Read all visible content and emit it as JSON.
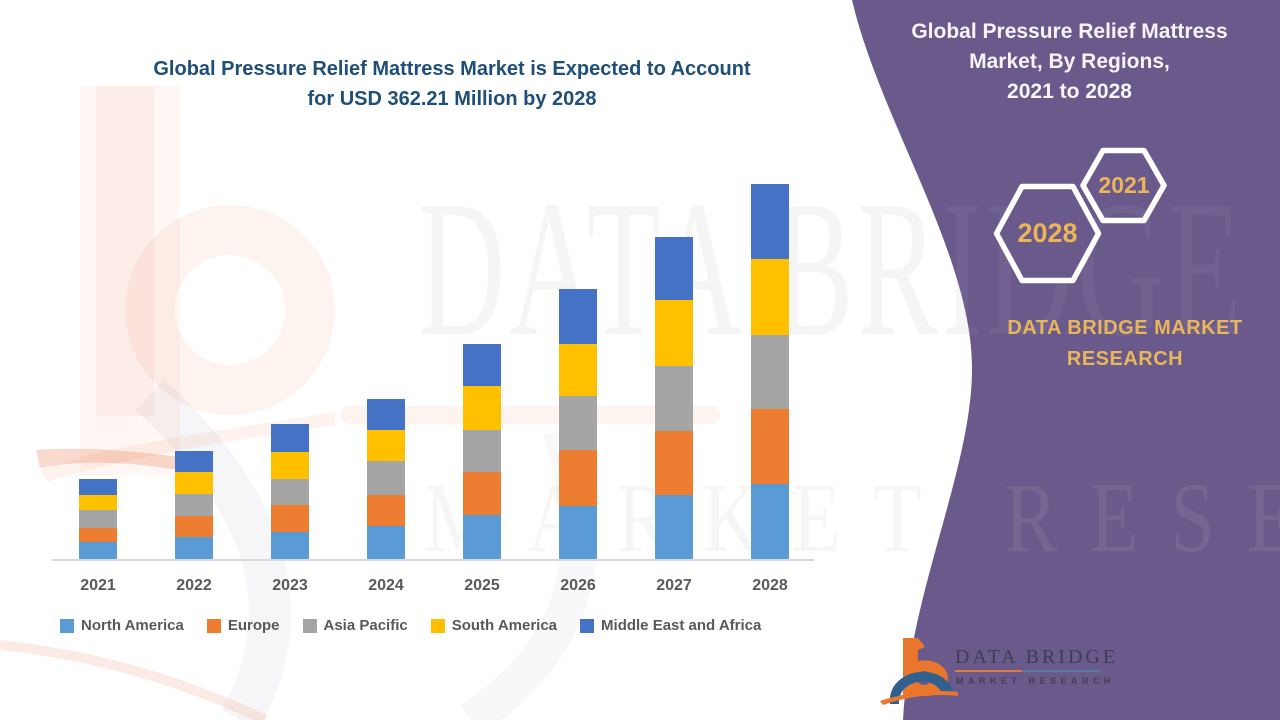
{
  "main_title": {
    "line1": "Global Pressure Relief Mattress Market is Expected to Account",
    "line2": "for USD 362.21 Million by 2028"
  },
  "side_panel": {
    "title_line1": "Global Pressure Relief Mattress",
    "title_line2": "Market, By Regions,",
    "title_line3": "2021 to 2028",
    "hexagon_back_label": "2021",
    "hexagon_front_label": "2028",
    "brand_line1": "DATA BRIDGE MARKET",
    "brand_line2": "RESEARCH",
    "panel_color": "#6a598b",
    "accent_gold": "#ecb658"
  },
  "footer_logo": {
    "brand": "DATA BRIDGE",
    "tagline": "MARKET RESEARCH"
  },
  "watermarks": {
    "row1": "DATA BRIDGE",
    "row2": "MARKET RESEARCH"
  },
  "chart_data": {
    "type": "bar",
    "stacked": true,
    "title": "Global Pressure Relief Mattress Market is Expected to Account for USD 362.21 Million by 2028",
    "value_unit": "USD Million",
    "categories": [
      "2021",
      "2022",
      "2023",
      "2024",
      "2025",
      "2026",
      "2027",
      "2028"
    ],
    "series": [
      {
        "name": "North America",
        "color": "#5B9BD5",
        "values": [
          16.5,
          21.3,
          25.9,
          32.0,
          42.9,
          51.7,
          61.4,
          72.4
        ]
      },
      {
        "name": "Europe",
        "color": "#ED7D31",
        "values": [
          13.9,
          20.7,
          26.2,
          30.3,
          41.0,
          53.3,
          62.3,
          72.7
        ]
      },
      {
        "name": "Asia Pacific",
        "color": "#A5A5A5",
        "values": [
          17.4,
          20.4,
          24.9,
          32.0,
          40.7,
          52.6,
          63.0,
          71.7
        ]
      },
      {
        "name": "South America",
        "color": "#FFC000",
        "values": [
          14.5,
          21.6,
          26.9,
          30.3,
          42.4,
          49.7,
          63.3,
          72.7
        ]
      },
      {
        "name": "Middle East and Africa",
        "color": "#4472C4",
        "values": [
          15.2,
          20.1,
          26.9,
          30.4,
          41.0,
          53.0,
          61.4,
          72.7
        ]
      }
    ],
    "totals": [
      77.5,
      104.1,
      130.8,
      155.0,
      208.0,
      260.3,
      311.4,
      362.21
    ],
    "ylim": [
      0,
      380
    ],
    "value_axis_visible": false,
    "gridlines": false,
    "legend_position": "bottom",
    "title_color": "#1f4e79",
    "axis_label_color": "#595959"
  }
}
